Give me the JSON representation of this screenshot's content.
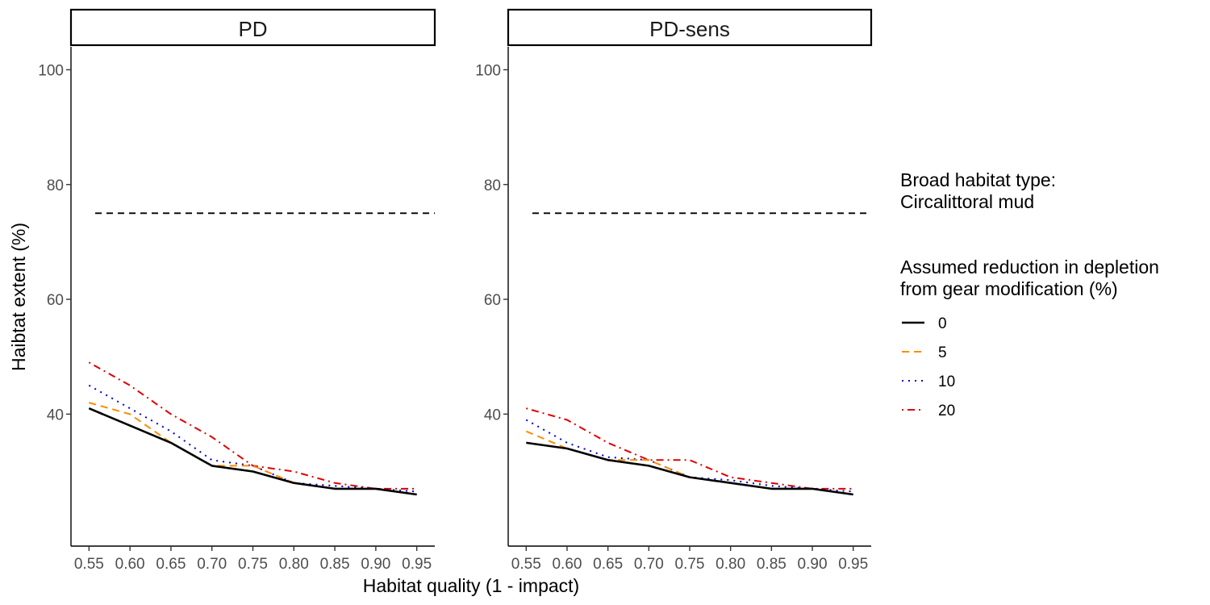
{
  "chart_data": {
    "type": "line",
    "xlabel": "Habitat quality (1 - impact)",
    "ylabel": "Haibtat extent (%)",
    "x": [
      0.55,
      0.6,
      0.65,
      0.7,
      0.75,
      0.8,
      0.85,
      0.9,
      0.95
    ],
    "x_tick_labels": [
      "0.55",
      "0.60",
      "0.65",
      "0.70",
      "0.75",
      "0.80",
      "0.85",
      "0.90",
      "0.95"
    ],
    "xlim": [
      0.528,
      0.972
    ],
    "ylim": [
      17,
      104
    ],
    "y_ticks": [
      40,
      60,
      80,
      100
    ],
    "y_tick_labels": [
      "40",
      "60",
      "80",
      "100"
    ],
    "reference_line": {
      "y": 75,
      "style": "dashed",
      "color": "#000000"
    },
    "grid": false,
    "legend": {
      "placement": "right",
      "title_lines": [
        "Broad habitat type:",
        "Circalittoral mud",
        "",
        "Assumed reduction in depletion",
        "from gear modification (%)"
      ]
    },
    "series_styles": [
      {
        "name": "0",
        "color": "#000000",
        "dash": "solid"
      },
      {
        "name": "5",
        "color": "#FF8C00",
        "dash": "dashed"
      },
      {
        "name": "10",
        "color": "#0000CD",
        "dash": "dotted"
      },
      {
        "name": "20",
        "color": "#E00000",
        "dash": "dotdash"
      }
    ],
    "panels": [
      {
        "title": "PD",
        "series": [
          {
            "name": "0",
            "values": [
              41,
              38,
              35,
              31,
              30,
              28,
              27,
              27,
              26
            ]
          },
          {
            "name": "5",
            "values": [
              42,
              40,
              35,
              31,
              31,
              28,
              27,
              27,
              26
            ]
          },
          {
            "name": "10",
            "values": [
              45,
              41,
              37,
              32,
              31,
              28,
              27.5,
              27,
              26.5
            ]
          },
          {
            "name": "20",
            "values": [
              49,
              45,
              40,
              36,
              31,
              30,
              28,
              27,
              27
            ]
          }
        ]
      },
      {
        "title": "PD-sens",
        "series": [
          {
            "name": "0",
            "values": [
              35,
              34,
              32,
              31,
              29,
              28,
              27,
              27,
              26
            ]
          },
          {
            "name": "5",
            "values": [
              37,
              34,
              32,
              32,
              29,
              28,
              27,
              27,
              26
            ]
          },
          {
            "name": "10",
            "values": [
              39,
              35,
              32.5,
              32,
              29,
              28.5,
              27.5,
              27,
              26.5
            ]
          },
          {
            "name": "20",
            "values": [
              41,
              39,
              35,
              32,
              32,
              29,
              28,
              27,
              27
            ]
          }
        ]
      }
    ]
  }
}
